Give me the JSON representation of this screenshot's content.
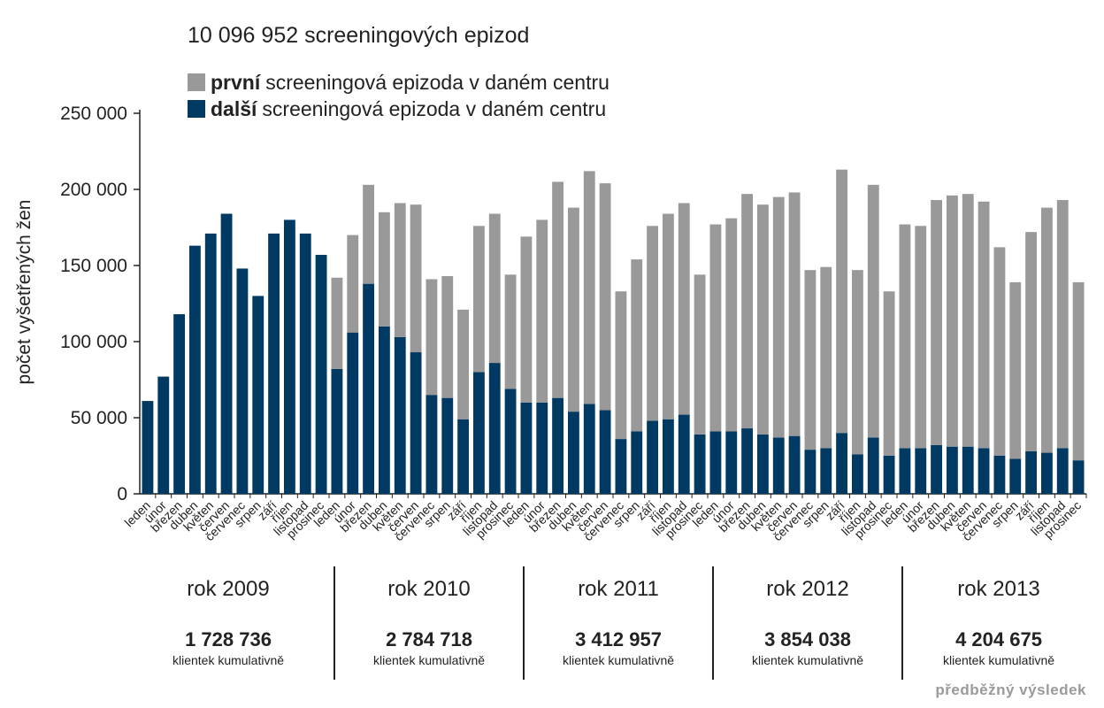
{
  "chart_data": {
    "type": "bar",
    "stacked": true,
    "title": "10 096 952 screeningových epizod",
    "ylabel": "počet vyšetřených žen",
    "ylim": [
      0,
      250000
    ],
    "yticks": [
      "0",
      "50 000",
      "100 000",
      "150 000",
      "200 000",
      "250 000"
    ],
    "ytick_values": [
      0,
      50000,
      100000,
      150000,
      200000,
      250000
    ],
    "grid": false,
    "legend": {
      "placement": "top-left",
      "entries": [
        {
          "bold": "první",
          "text": "screeningová epizoda v daném centru",
          "color": "#999999"
        },
        {
          "bold": "další",
          "text": "screeningová epizoda v daném centru",
          "color": "#003a63"
        }
      ]
    },
    "categories": [
      "leden",
      "únor",
      "březen",
      "duben",
      "květen",
      "červen",
      "červenec",
      "srpen",
      "září",
      "říjen",
      "listopad",
      "prosinec",
      "leden",
      "únor",
      "březen",
      "duben",
      "květen",
      "červen",
      "červenec",
      "srpen",
      "září",
      "říjen",
      "listopad",
      "prosinec",
      "leden",
      "únor",
      "březen",
      "duben",
      "květen",
      "červen",
      "červenec",
      "srpen",
      "září",
      "říjen",
      "listopad",
      "prosinec",
      "leden",
      "únor",
      "březen",
      "duben",
      "květen",
      "červen",
      "červenec",
      "srpen",
      "září",
      "říjen",
      "listopad",
      "prosinec",
      "leden",
      "únor",
      "březen",
      "duben",
      "květen",
      "červen",
      "červenec",
      "srpen",
      "září",
      "říjen",
      "listopad",
      "prosinec"
    ],
    "series": [
      {
        "name": "další screeningová epizoda v daném centru",
        "color": "#003a63",
        "values": [
          61000,
          77000,
          118000,
          163000,
          171000,
          184000,
          148000,
          130000,
          171000,
          180000,
          171000,
          157000,
          82000,
          106000,
          138000,
          110000,
          103000,
          93000,
          65000,
          63000,
          49000,
          80000,
          86000,
          69000,
          60000,
          60000,
          63000,
          54000,
          59000,
          55000,
          36000,
          41000,
          48000,
          49000,
          52000,
          39000,
          41000,
          41000,
          43000,
          39000,
          37000,
          38000,
          29000,
          30000,
          40000,
          26000,
          37000,
          25000,
          30000,
          30000,
          32000,
          31000,
          31000,
          30000,
          25000,
          23000,
          28000,
          27000,
          30000,
          22000
        ]
      },
      {
        "name": "první screeningová epizoda v daném centru",
        "color": "#999999",
        "values": [
          0,
          0,
          0,
          0,
          0,
          0,
          0,
          0,
          0,
          0,
          0,
          0,
          60000,
          64000,
          65000,
          75000,
          88000,
          97000,
          76000,
          80000,
          72000,
          96000,
          98000,
          75000,
          109000,
          120000,
          142000,
          134000,
          153000,
          149000,
          97000,
          113000,
          128000,
          135000,
          139000,
          105000,
          136000,
          140000,
          154000,
          151000,
          158000,
          160000,
          118000,
          119000,
          173000,
          121000,
          166000,
          108000,
          147000,
          146000,
          161000,
          165000,
          166000,
          162000,
          137000,
          116000,
          144000,
          161000,
          163000,
          117000
        ]
      }
    ],
    "years": [
      {
        "label": "rok 2009",
        "total": "1 728 736",
        "note": "klientek kumulativně"
      },
      {
        "label": "rok 2010",
        "total": "2 784 718",
        "note": "klientek kumulativně"
      },
      {
        "label": "rok 2011",
        "total": "3 412 957",
        "note": "klientek kumulativně"
      },
      {
        "label": "rok 2012",
        "total": "3 854 038",
        "note": "klientek kumulativně"
      },
      {
        "label": "rok 2013",
        "total": "4 204 675",
        "note": "klientek kumulativně"
      }
    ]
  },
  "footnote": "předběžný výsledek"
}
